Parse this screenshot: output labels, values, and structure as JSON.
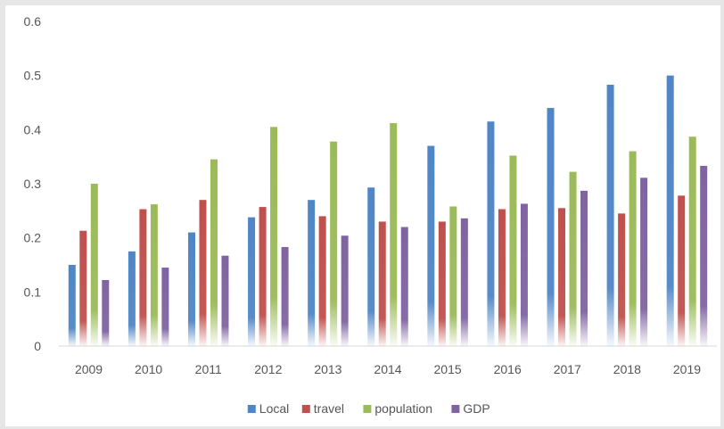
{
  "chart_data": {
    "type": "bar",
    "categories": [
      "2009",
      "2010",
      "2011",
      "2012",
      "2013",
      "2014",
      "2015",
      "2016",
      "2017",
      "2018",
      "2019"
    ],
    "series": [
      {
        "name": "Local",
        "color": "#4f86c6",
        "values": [
          0.15,
          0.175,
          0.21,
          0.238,
          0.27,
          0.293,
          0.37,
          0.415,
          0.44,
          0.483,
          0.5
        ]
      },
      {
        "name": "travel",
        "color": "#c0504d",
        "values": [
          0.213,
          0.253,
          0.27,
          0.257,
          0.24,
          0.23,
          0.23,
          0.253,
          0.255,
          0.245,
          0.278
        ]
      },
      {
        "name": "population",
        "color": "#9bbb59",
        "values": [
          0.3,
          0.262,
          0.345,
          0.405,
          0.378,
          0.412,
          0.258,
          0.352,
          0.322,
          0.36,
          0.387
        ]
      },
      {
        "name": "GDP",
        "color": "#8064a2",
        "values": [
          0.122,
          0.145,
          0.167,
          0.183,
          0.204,
          0.22,
          0.236,
          0.263,
          0.287,
          0.311,
          0.333
        ]
      }
    ],
    "yticks": [
      "0",
      "0.1",
      "0.2",
      "0.3",
      "0.4",
      "0.5",
      "0.6"
    ],
    "ylim": [
      0,
      0.6
    ],
    "grid": false,
    "legend_position": "bottom",
    "title": "",
    "xlabel": "",
    "ylabel": ""
  }
}
